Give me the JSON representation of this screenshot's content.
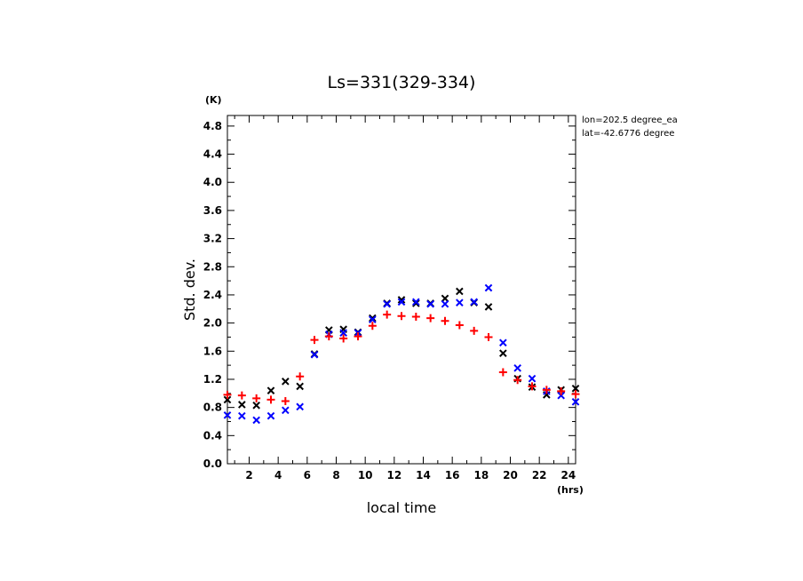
{
  "chart_data": {
    "type": "scatter",
    "title": "Ls=331(329-334)",
    "xlabel": "local time",
    "ylabel": "Std. dev.",
    "x_unit": "(hrs)",
    "y_unit": "(K)",
    "xlim": [
      0.5,
      24.5
    ],
    "ylim": [
      0.0,
      4.95
    ],
    "x_ticks": [
      2,
      4,
      6,
      8,
      10,
      12,
      14,
      16,
      18,
      20,
      22,
      24
    ],
    "y_ticks": [
      0.0,
      0.4,
      0.8,
      1.2,
      1.6,
      2.0,
      2.4,
      2.8,
      3.2,
      3.6,
      4.0,
      4.4,
      4.8
    ],
    "y_tick_labels": [
      "0.0",
      "0.4",
      "0.8",
      "1.2",
      "1.6",
      "2.0",
      "2.4",
      "2.8",
      "3.2",
      "3.6",
      "4.0",
      "4.4",
      "4.8"
    ],
    "annotations": [
      "lon=202.5 degree_ea",
      "lat=-42.6776 degree"
    ],
    "grid": false,
    "series": [
      {
        "marker": "x",
        "color": "#000000",
        "x": [
          0.5,
          1.5,
          2.5,
          3.5,
          4.5,
          5.5,
          6.5,
          7.5,
          8.5,
          9.5,
          10.5,
          11.5,
          12.5,
          13.5,
          14.5,
          15.5,
          16.5,
          17.5,
          18.5,
          19.5,
          20.5,
          21.5,
          22.5,
          23.5,
          24.5
        ],
        "values": [
          0.91,
          0.84,
          0.83,
          1.04,
          1.17,
          1.1,
          1.56,
          1.9,
          1.91,
          1.87,
          2.07,
          2.28,
          2.33,
          2.28,
          2.28,
          2.35,
          2.45,
          2.29,
          2.23,
          1.57,
          1.21,
          1.09,
          0.98,
          1.05,
          1.07
        ]
      },
      {
        "marker": "x",
        "color": "#0000ff",
        "x": [
          0.5,
          1.5,
          2.5,
          3.5,
          4.5,
          5.5,
          6.5,
          7.5,
          8.5,
          9.5,
          10.5,
          11.5,
          12.5,
          13.5,
          14.5,
          15.5,
          16.5,
          17.5,
          18.5,
          19.5,
          20.5,
          21.5,
          22.5,
          23.5,
          24.5
        ],
        "values": [
          0.69,
          0.68,
          0.62,
          0.68,
          0.76,
          0.81,
          1.55,
          1.84,
          1.86,
          1.86,
          2.05,
          2.27,
          2.3,
          2.3,
          2.27,
          2.27,
          2.29,
          2.3,
          2.5,
          1.72,
          1.36,
          1.21,
          1.03,
          0.97,
          0.88
        ]
      },
      {
        "marker": "+",
        "color": "#ff0000",
        "x": [
          0.5,
          1.5,
          2.5,
          3.5,
          4.5,
          5.5,
          6.5,
          7.5,
          8.5,
          9.5,
          10.5,
          11.5,
          12.5,
          13.5,
          14.5,
          15.5,
          16.5,
          17.5,
          18.5,
          19.5,
          20.5,
          21.5,
          22.5,
          23.5,
          24.5
        ],
        "values": [
          0.98,
          0.97,
          0.93,
          0.91,
          0.89,
          1.24,
          1.76,
          1.81,
          1.78,
          1.81,
          1.96,
          2.12,
          2.1,
          2.09,
          2.07,
          2.03,
          1.97,
          1.89,
          1.8,
          1.3,
          1.19,
          1.1,
          1.05,
          1.03,
          0.99
        ]
      }
    ]
  }
}
